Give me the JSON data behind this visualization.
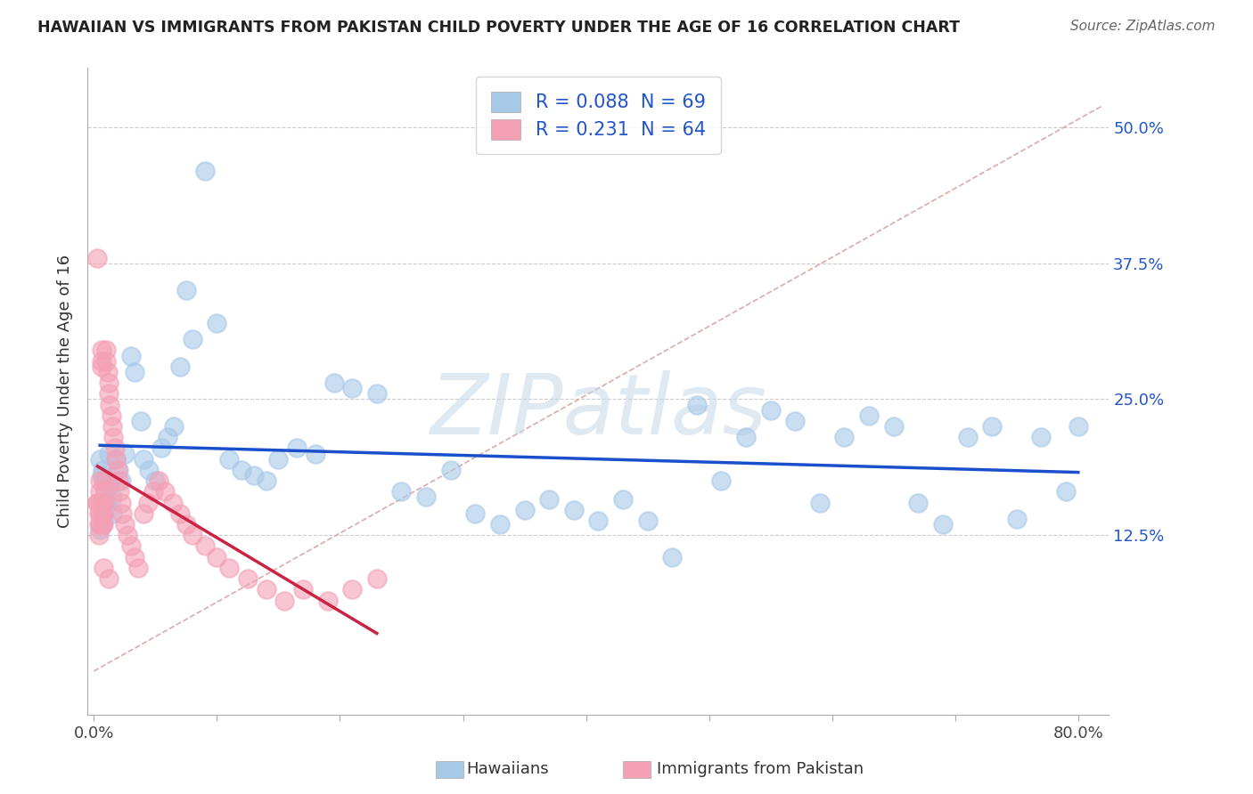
{
  "title": "HAWAIIAN VS IMMIGRANTS FROM PAKISTAN CHILD POVERTY UNDER THE AGE OF 16 CORRELATION CHART",
  "source": "Source: ZipAtlas.com",
  "ylabel_label": "Child Poverty Under the Age of 16",
  "xlim": [
    -0.005,
    0.825
  ],
  "ylim": [
    -0.04,
    0.555
  ],
  "watermark": "ZIPatlas",
  "hawaiians_color": "#a8c8e8",
  "pakistan_color": "#f4a0b5",
  "hawaiians_line_color": "#1a4fcc",
  "pakistan_line_color": "#cc2244",
  "diagonal_color": "#ddaaaa",
  "grid_color": "#cccccc",
  "hawaiians_label": "Hawaiians",
  "pakistan_label": "Immigrants from Pakistan",
  "r_hawaii": 0.088,
  "n_hawaii": 69,
  "r_pakistan": 0.231,
  "n_pakistan": 64,
  "ytick_vals": [
    0.0,
    0.125,
    0.25,
    0.375,
    0.5
  ],
  "ytick_labels": [
    "",
    "12.5%",
    "25.0%",
    "37.5%",
    "50.0%"
  ],
  "xtick_vals": [
    0.0,
    0.1,
    0.2,
    0.3,
    0.4,
    0.5,
    0.6,
    0.7,
    0.8
  ],
  "xtick_labels_show": [
    "0.0%",
    "",
    "",
    "",
    "",
    "",
    "",
    "",
    "80.0%"
  ],
  "title_color": "#222222",
  "source_color": "#666666",
  "axis_label_color": "#444444",
  "ytick_color": "#2255cc",
  "background_color": "#ffffff",
  "hawaiians_x": [
    0.005,
    0.006,
    0.007,
    0.008,
    0.009,
    0.01,
    0.012,
    0.013,
    0.015,
    0.018,
    0.02,
    0.022,
    0.025,
    0.03,
    0.033,
    0.038,
    0.04,
    0.045,
    0.05,
    0.055,
    0.06,
    0.065,
    0.07,
    0.075,
    0.08,
    0.09,
    0.1,
    0.11,
    0.12,
    0.13,
    0.14,
    0.15,
    0.165,
    0.18,
    0.195,
    0.21,
    0.23,
    0.25,
    0.27,
    0.29,
    0.31,
    0.33,
    0.35,
    0.37,
    0.39,
    0.41,
    0.43,
    0.45,
    0.47,
    0.49,
    0.51,
    0.53,
    0.55,
    0.57,
    0.59,
    0.61,
    0.63,
    0.65,
    0.67,
    0.69,
    0.71,
    0.73,
    0.75,
    0.77,
    0.79,
    0.8,
    0.005,
    0.008,
    0.015
  ],
  "hawaiians_y": [
    0.195,
    0.18,
    0.185,
    0.175,
    0.165,
    0.155,
    0.2,
    0.17,
    0.16,
    0.195,
    0.185,
    0.175,
    0.2,
    0.29,
    0.275,
    0.23,
    0.195,
    0.185,
    0.175,
    0.205,
    0.215,
    0.225,
    0.28,
    0.35,
    0.305,
    0.46,
    0.32,
    0.195,
    0.185,
    0.18,
    0.175,
    0.195,
    0.205,
    0.2,
    0.265,
    0.26,
    0.255,
    0.165,
    0.16,
    0.185,
    0.145,
    0.135,
    0.148,
    0.158,
    0.148,
    0.138,
    0.158,
    0.138,
    0.105,
    0.245,
    0.175,
    0.215,
    0.24,
    0.23,
    0.155,
    0.215,
    0.235,
    0.225,
    0.155,
    0.135,
    0.215,
    0.225,
    0.14,
    0.215,
    0.165,
    0.225,
    0.13,
    0.14,
    0.145
  ],
  "pakistan_x": [
    0.003,
    0.003,
    0.004,
    0.004,
    0.004,
    0.005,
    0.005,
    0.005,
    0.005,
    0.006,
    0.006,
    0.006,
    0.007,
    0.007,
    0.007,
    0.008,
    0.008,
    0.008,
    0.009,
    0.009,
    0.01,
    0.01,
    0.011,
    0.012,
    0.012,
    0.013,
    0.014,
    0.015,
    0.016,
    0.017,
    0.018,
    0.019,
    0.02,
    0.021,
    0.022,
    0.023,
    0.025,
    0.027,
    0.03,
    0.033,
    0.036,
    0.04,
    0.044,
    0.048,
    0.053,
    0.058,
    0.064,
    0.07,
    0.075,
    0.08,
    0.09,
    0.1,
    0.11,
    0.125,
    0.14,
    0.155,
    0.17,
    0.19,
    0.21,
    0.23,
    0.003,
    0.005,
    0.008,
    0.012
  ],
  "pakistan_y": [
    0.155,
    0.38,
    0.145,
    0.135,
    0.125,
    0.155,
    0.145,
    0.135,
    0.175,
    0.295,
    0.285,
    0.28,
    0.155,
    0.145,
    0.135,
    0.155,
    0.145,
    0.135,
    0.175,
    0.165,
    0.295,
    0.285,
    0.275,
    0.265,
    0.255,
    0.245,
    0.235,
    0.225,
    0.215,
    0.205,
    0.195,
    0.185,
    0.175,
    0.165,
    0.155,
    0.145,
    0.135,
    0.125,
    0.115,
    0.105,
    0.095,
    0.145,
    0.155,
    0.165,
    0.175,
    0.165,
    0.155,
    0.145,
    0.135,
    0.125,
    0.115,
    0.105,
    0.095,
    0.085,
    0.075,
    0.065,
    0.075,
    0.065,
    0.075,
    0.085,
    0.155,
    0.165,
    0.095,
    0.085
  ]
}
